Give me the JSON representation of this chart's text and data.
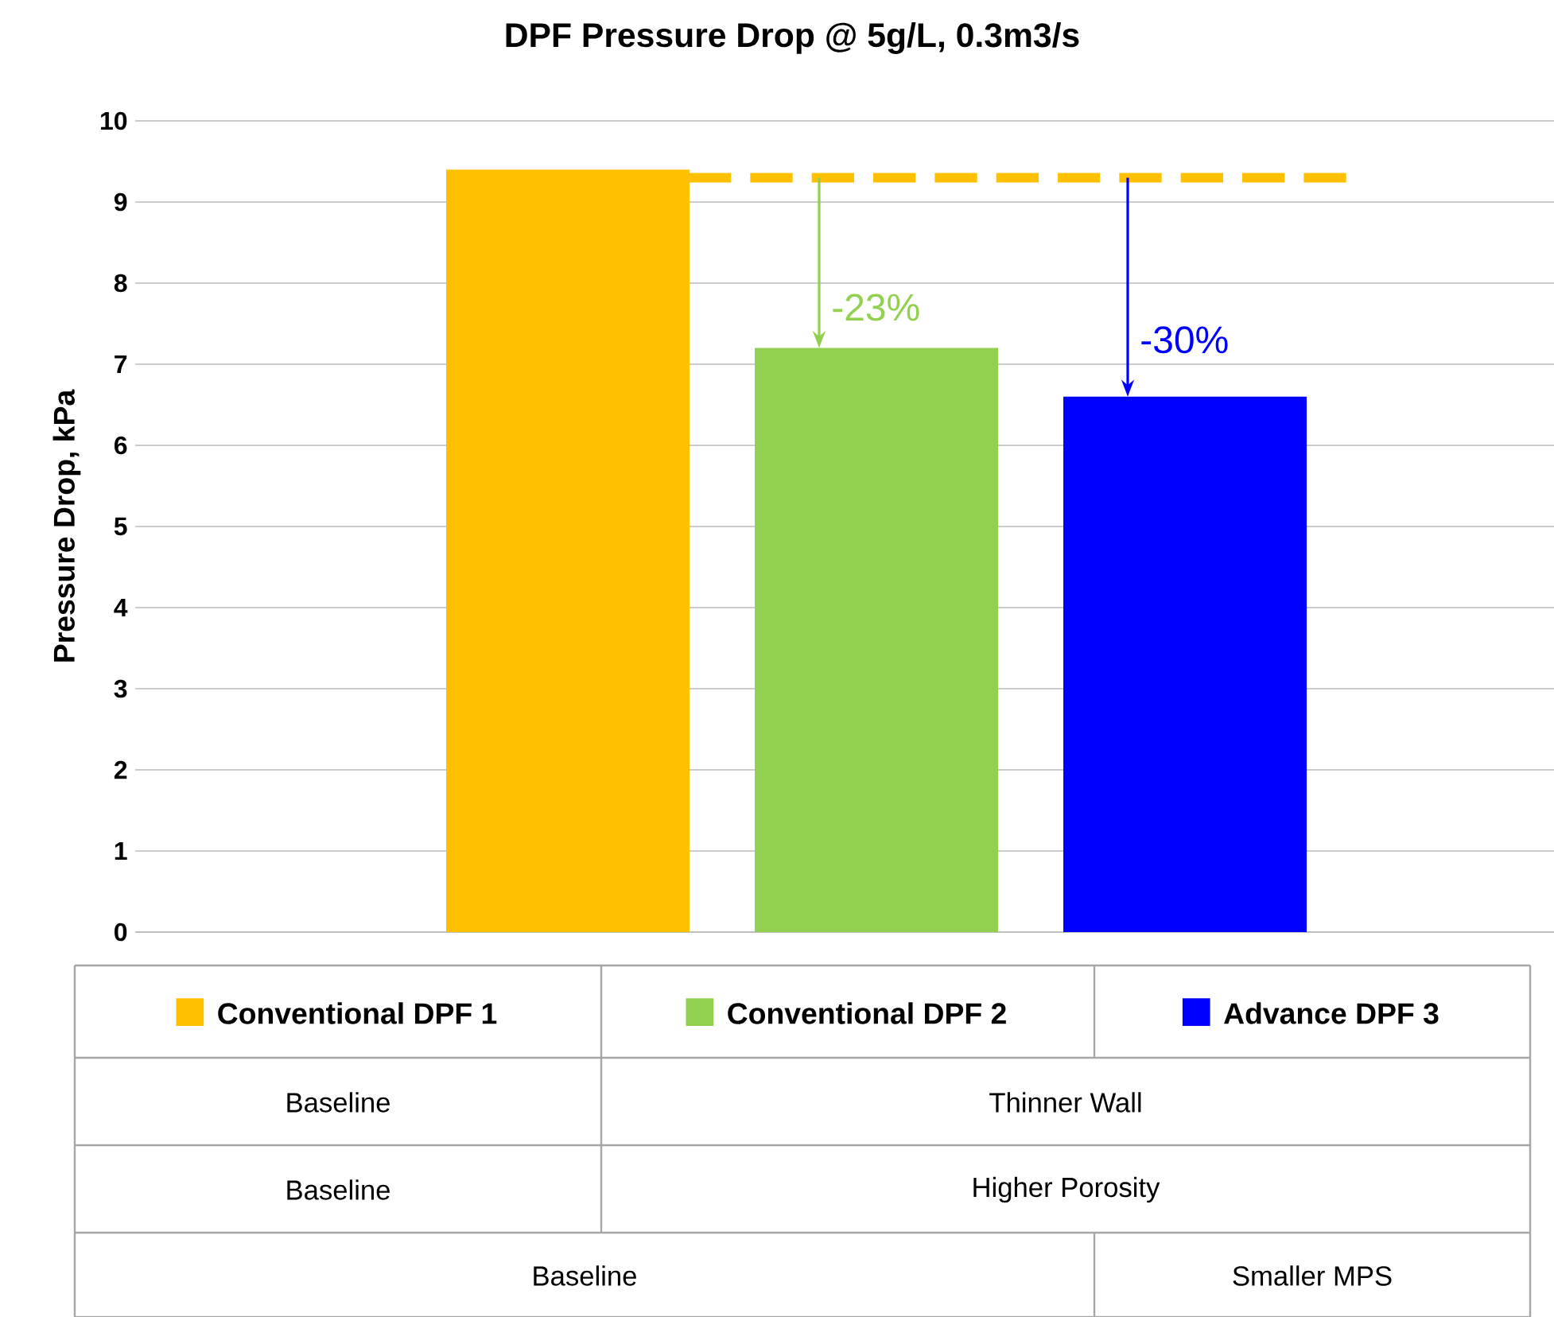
{
  "chart_data": {
    "type": "bar",
    "title": "DPF Pressure Drop @ 5g/L, 0.3m3/s",
    "ylabel": "Pressure Drop, kPa",
    "categories": [
      null
    ],
    "series": [
      {
        "name": "Conventional DPF 1",
        "color": "#ffc000",
        "values": [
          9.4
        ]
      },
      {
        "name": "Conventional DPF 2",
        "color": "#92d050",
        "values": [
          7.2
        ]
      },
      {
        "name": "Advance DPF 3",
        "color": "#0000ff",
        "values": [
          6.6
        ]
      }
    ],
    "ylim": [
      0,
      10
    ],
    "yticks": [
      0,
      1,
      2,
      3,
      4,
      5,
      6,
      7,
      8,
      9,
      10
    ],
    "grid": "y",
    "legend": "bottom",
    "tick_labels": "y",
    "ref_lines": [
      {
        "axis": "y",
        "value": 9.3,
        "color": "#ffc000",
        "line_style": "dashed"
      }
    ],
    "annotations": [
      "-23%",
      "-30%",
      "Baseline",
      "Thinner Wall",
      "Baseline",
      "Higher Porosity",
      "Baseline",
      "Smaller MPS"
    ]
  }
}
